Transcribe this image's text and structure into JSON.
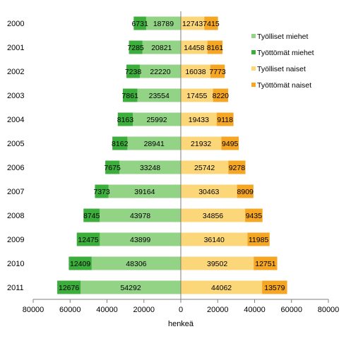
{
  "chart_data": {
    "type": "bar",
    "orientation": "horizontal",
    "layout": "population-pyramid (left side negative, right side positive, stacked)",
    "categories": [
      "2000",
      "2001",
      "2002",
      "2003",
      "2004",
      "2005",
      "2006",
      "2007",
      "2008",
      "2009",
      "2010",
      "2011"
    ],
    "series": [
      {
        "name": "Työlliset miehet",
        "side": "left",
        "color": "#92d385",
        "values": [
          18789,
          20821,
          22220,
          23554,
          25992,
          28941,
          33248,
          39164,
          43978,
          43899,
          48306,
          54292
        ]
      },
      {
        "name": "Työttömät miehet",
        "side": "left",
        "color": "#3cae3c",
        "values": [
          6731,
          7285,
          7238,
          7861,
          8163,
          8162,
          7675,
          7373,
          8745,
          12475,
          12409,
          12676
        ]
      },
      {
        "name": "Työlliset naiset",
        "side": "right",
        "color": "#fcd77a",
        "values": [
          12743,
          14458,
          16038,
          17455,
          19433,
          21932,
          25742,
          30463,
          34856,
          36140,
          39502,
          44062
        ]
      },
      {
        "name": "Työttömät naiset",
        "side": "right",
        "color": "#f5a623",
        "values": [
          7415,
          8161,
          7773,
          8220,
          9118,
          9495,
          9278,
          8909,
          9435,
          11985,
          12751,
          13579
        ]
      }
    ],
    "xlabel": "henkeä",
    "xlim": [
      -80000,
      80000
    ],
    "x_ticks": [
      -80000,
      -60000,
      -40000,
      -20000,
      0,
      20000,
      40000,
      60000,
      80000
    ],
    "x_tick_labels": [
      "80000",
      "60000",
      "40000",
      "20000",
      "0",
      "20000",
      "40000",
      "60000",
      "80000"
    ],
    "grid": false,
    "legend_position": "right"
  }
}
